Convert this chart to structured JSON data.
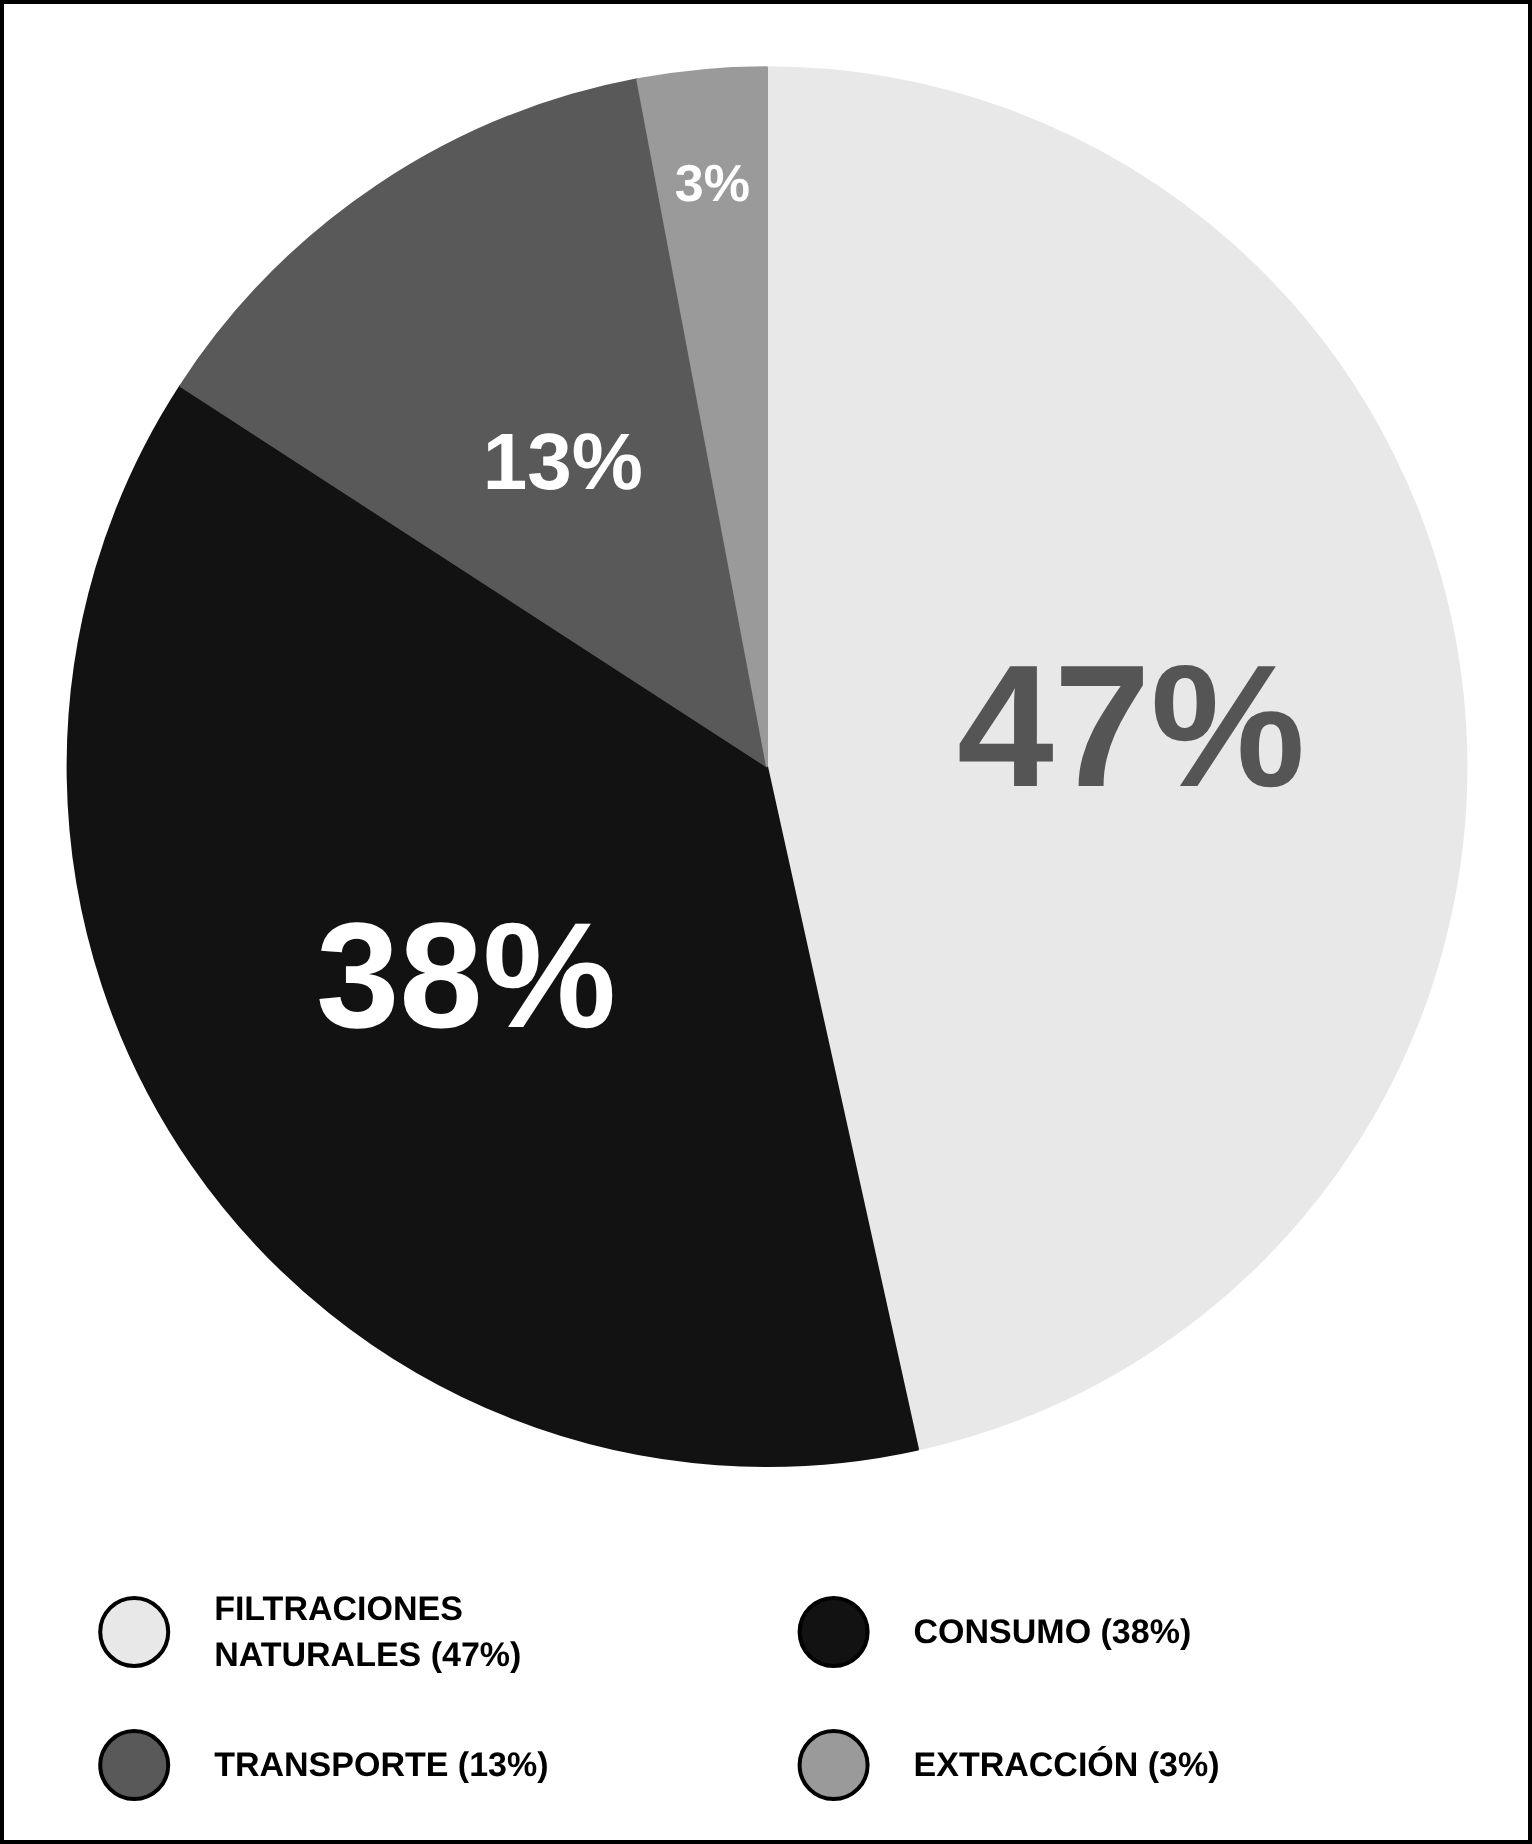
{
  "chart_data": {
    "type": "pie",
    "categories": [
      "FILTRACIONES\nNATURALES (47%)",
      "CONSUMO (38%)",
      "TRANSPORTE (13%)",
      "EXTRACCIÓN (3%)"
    ],
    "values": [
      47,
      38,
      13,
      3
    ],
    "colors": [
      "#e8e8e8",
      "#121212",
      "#595959",
      "#9a9a9a"
    ],
    "value_labels": [
      "47%",
      "38%",
      "13%",
      "3%"
    ],
    "legend": "bottom"
  }
}
